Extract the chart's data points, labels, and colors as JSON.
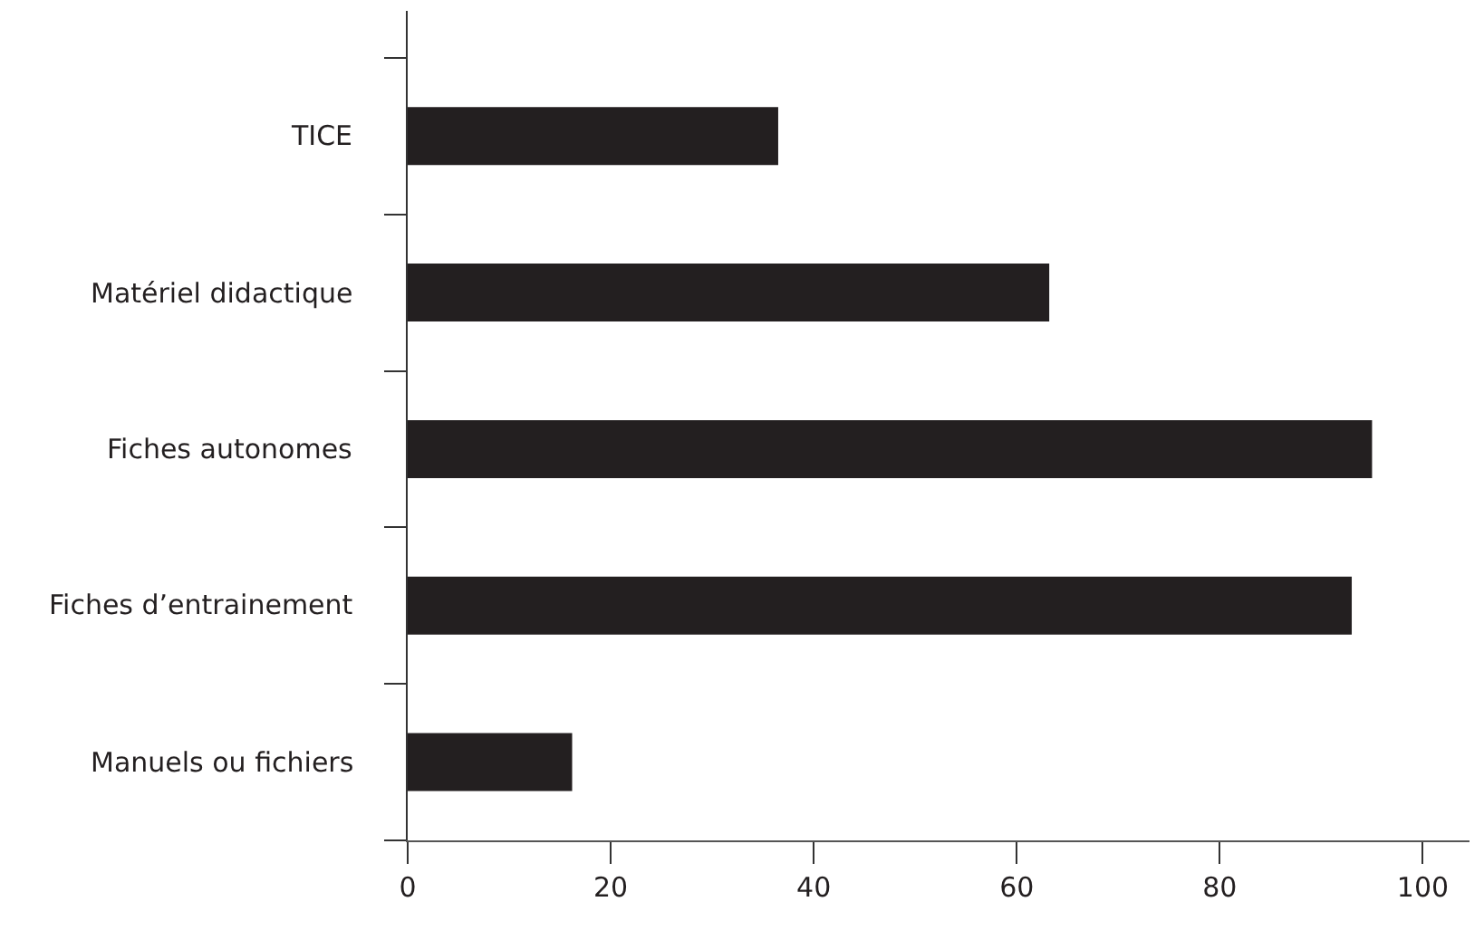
{
  "chart_data": {
    "type": "bar",
    "orientation": "horizontal",
    "categories": [
      "TICE",
      "Matériel didactique",
      "Fiches autonomes",
      "Fiches d’entrainement",
      "Manuels ou fichiers"
    ],
    "values": [
      36.5,
      63.2,
      95.0,
      93.0,
      16.2
    ],
    "color": "#231f20",
    "xlim": [
      0,
      104.6
    ],
    "xticks": [
      0,
      20,
      40,
      60,
      80,
      100
    ]
  }
}
